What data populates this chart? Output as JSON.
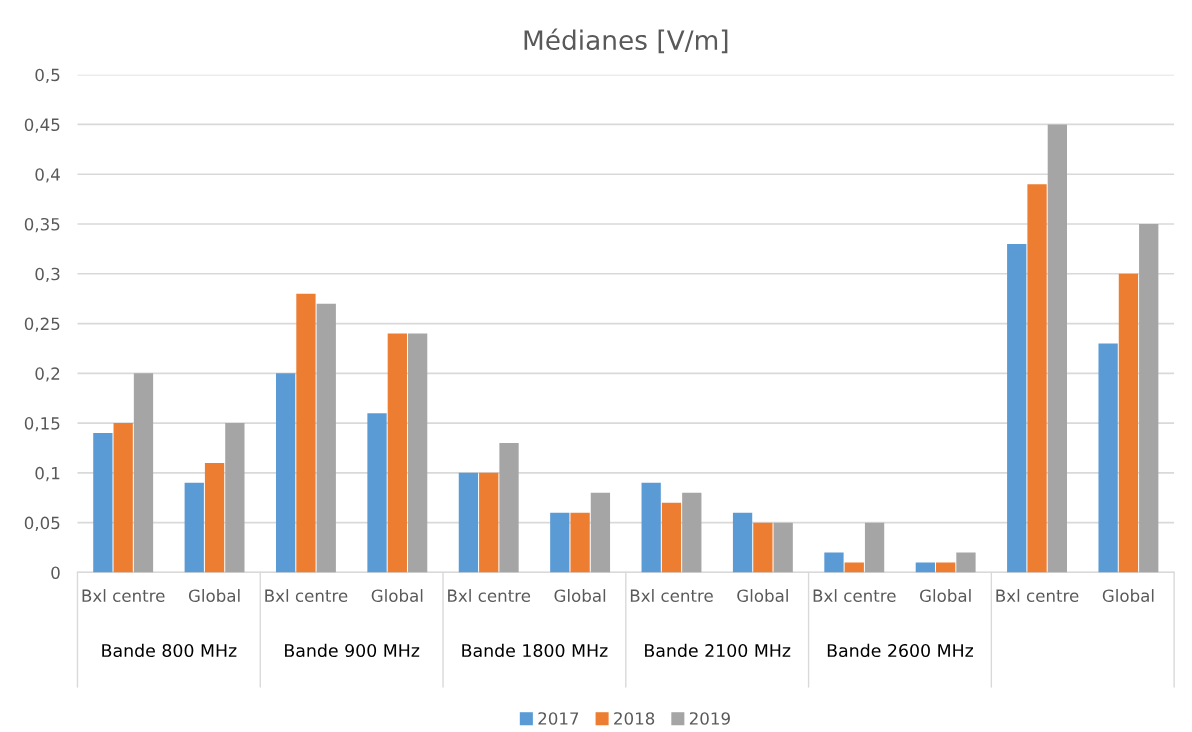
{
  "chart_data": {
    "type": "bar",
    "title": "Médianes [V/m]",
    "categories": [
      "Bxl centre",
      "Global",
      "Bxl centre",
      "Global",
      "Bxl centre",
      "Global",
      "Bxl centre",
      "Global",
      "Bxl centre",
      "Global",
      "Bxl centre",
      "Global"
    ],
    "series": [
      {
        "name": "2017",
        "color": "#5b9bd5",
        "values": [
          0.14,
          0.09,
          0.2,
          0.16,
          0.1,
          0.06,
          0.09,
          0.06,
          0.02,
          0.01,
          0.33,
          0.23
        ]
      },
      {
        "name": "2018",
        "color": "#ed7d31",
        "values": [
          0.15,
          0.11,
          0.28,
          0.24,
          0.1,
          0.06,
          0.07,
          0.05,
          0.01,
          0.01,
          0.39,
          0.3
        ]
      },
      {
        "name": "2019",
        "color": "#a5a5a5",
        "values": [
          0.2,
          0.15,
          0.27,
          0.24,
          0.13,
          0.08,
          0.08,
          0.05,
          0.05,
          0.02,
          0.45,
          0.35
        ]
      }
    ],
    "annotations": [
      "Bande 800 MHz",
      "Bande 900 MHz",
      "Bande 1800 MHz",
      "Bande 2100 MHz",
      "Bande 2600 MHz"
    ],
    "ylim": [
      0,
      0.5
    ],
    "yticks": [
      0,
      {
        "value": 0.05,
        "label": "0,05"
      },
      {
        "value": 0.1,
        "label": "0,1"
      },
      {
        "value": 0.15,
        "label": "0,15"
      },
      {
        "value": 0.2,
        "label": "0,2"
      },
      {
        "value": 0.25,
        "label": "0,25"
      },
      {
        "value": 0.3,
        "label": "0,3"
      },
      {
        "value": 0.35,
        "label": "0,35"
      },
      {
        "value": 0.4,
        "label": "0,4"
      },
      {
        "value": 0.45,
        "label": "0,45"
      },
      {
        "value": 0.5,
        "label": "0,5"
      }
    ],
    "grid": "y",
    "legend": "bottom"
  }
}
